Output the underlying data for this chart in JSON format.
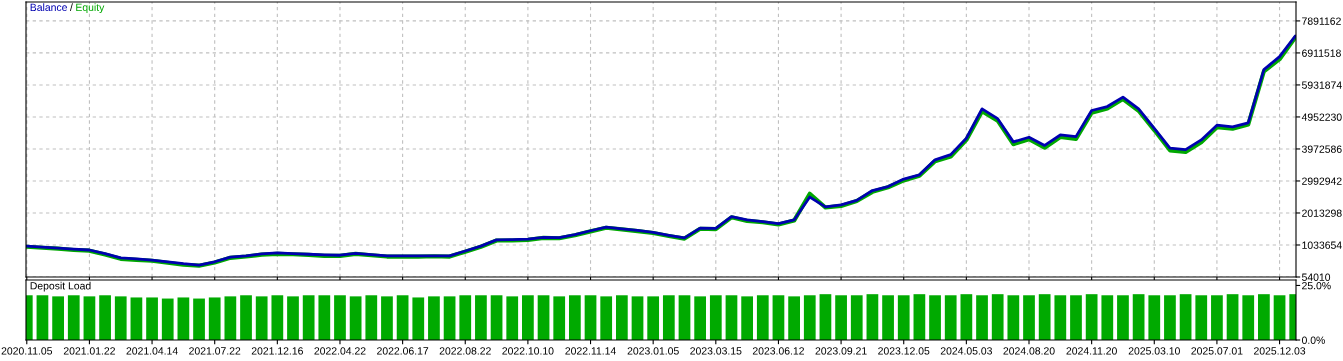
{
  "chart_data": [
    {
      "type": "line",
      "legend": "top left",
      "grid": true,
      "tick_labels": "y",
      "line_style": "solid",
      "marker": "none",
      "annotations": [
        "/"
      ],
      "ylim": [
        54010,
        8470000
      ],
      "yticks": [
        54010,
        1033654,
        2013298,
        2992942,
        3972586,
        4952230,
        5931874,
        6911518,
        7891162
      ],
      "categories": [
        "2020.11.05",
        null,
        null,
        null,
        "2021.01.22",
        null,
        null,
        null,
        "2021.04.14",
        null,
        null,
        null,
        "2021.07.22",
        null,
        null,
        null,
        "2021.12.16",
        null,
        null,
        null,
        "2022.04.22",
        null,
        null,
        null,
        "2022.06.17",
        null,
        null,
        null,
        "2022.08.22",
        null,
        null,
        null,
        "2022.10.10",
        null,
        null,
        null,
        "2022.11.14",
        null,
        null,
        null,
        "2023.01.05",
        null,
        null,
        null,
        "2023.03.15",
        null,
        null,
        null,
        "2023.06.12",
        null,
        null,
        null,
        "2023.09.21",
        null,
        null,
        null,
        "2023.12.05",
        null,
        null,
        null,
        "2024.05.03",
        null,
        null,
        null,
        "2024.08.20",
        null,
        null,
        null,
        "2024.11.20",
        null,
        null,
        null,
        "2025.03.10",
        null,
        null,
        null,
        "2025.07.01",
        null,
        null,
        null,
        "2025.12.03",
        null
      ],
      "series": [
        {
          "name": "Equity",
          "color": "#00a800",
          "values": [
            980000,
            950000,
            920000,
            880000,
            860000,
            740000,
            610000,
            580000,
            550000,
            490000,
            430000,
            400000,
            500000,
            640000,
            680000,
            740000,
            760000,
            750000,
            730000,
            700000,
            700000,
            760000,
            720000,
            680000,
            680000,
            680000,
            690000,
            680000,
            830000,
            980000,
            1170000,
            1170000,
            1190000,
            1250000,
            1240000,
            1330000,
            1450000,
            1560000,
            1510000,
            1460000,
            1400000,
            1310000,
            1230000,
            1530000,
            1520000,
            1880000,
            1770000,
            1730000,
            1660000,
            1780000,
            2600000,
            2180000,
            2230000,
            2380000,
            2660000,
            2800000,
            3010000,
            3150000,
            3600000,
            3740000,
            4250000,
            5130000,
            4840000,
            4120000,
            4270000,
            4010000,
            4340000,
            4280000,
            5080000,
            5210000,
            5500000,
            5140000,
            4550000,
            3930000,
            3880000,
            4180000,
            4640000,
            4590000,
            4720000,
            6350000,
            6720000,
            7380000
          ]
        },
        {
          "name": "Balance",
          "color": "#0000b0",
          "values": [
            1000000,
            970000,
            940000,
            910000,
            880000,
            770000,
            640000,
            610000,
            570000,
            520000,
            460000,
            420000,
            520000,
            660000,
            700000,
            760000,
            790000,
            770000,
            750000,
            730000,
            720000,
            780000,
            740000,
            700000,
            700000,
            700000,
            700000,
            700000,
            850000,
            1000000,
            1190000,
            1200000,
            1210000,
            1270000,
            1260000,
            1350000,
            1470000,
            1580000,
            1530000,
            1480000,
            1420000,
            1330000,
            1250000,
            1550000,
            1540000,
            1900000,
            1800000,
            1750000,
            1690000,
            1800000,
            2500000,
            2200000,
            2260000,
            2400000,
            2700000,
            2820000,
            3050000,
            3180000,
            3640000,
            3800000,
            4300000,
            5200000,
            4900000,
            4190000,
            4330000,
            4080000,
            4400000,
            4350000,
            5150000,
            5270000,
            5560000,
            5200000,
            4600000,
            4000000,
            3950000,
            4250000,
            4700000,
            4650000,
            4770000,
            6400000,
            6800000,
            7430000
          ]
        }
      ]
    },
    {
      "type": "bar",
      "title": "Deposit Load",
      "grid": false,
      "color": "#00aa00",
      "ylim": [
        0,
        27.5
      ],
      "yticks": [
        {
          "value": 0,
          "label": "0.0%"
        },
        {
          "value": 25,
          "label": "25.0%"
        }
      ],
      "categories": [
        "2020.11.05",
        null,
        null,
        null,
        "2021.01.22",
        null,
        null,
        null,
        "2021.04.14",
        null,
        null,
        null,
        "2021.07.22",
        null,
        null,
        null,
        "2021.12.16",
        null,
        null,
        null,
        "2022.04.22",
        null,
        null,
        null,
        "2022.06.17",
        null,
        null,
        null,
        "2022.08.22",
        null,
        null,
        null,
        "2022.10.10",
        null,
        null,
        null,
        "2022.11.14",
        null,
        null,
        null,
        "2023.01.05",
        null,
        null,
        null,
        "2023.03.15",
        null,
        null,
        null,
        "2023.06.12",
        null,
        null,
        null,
        "2023.09.21",
        null,
        null,
        null,
        "2023.12.05",
        null,
        null,
        null,
        "2024.05.03",
        null,
        null,
        null,
        "2024.08.20",
        null,
        null,
        null,
        "2024.11.20",
        null,
        null,
        null,
        "2025.03.10",
        null,
        null,
        null,
        "2025.07.01",
        null,
        null,
        null,
        "2025.12.03",
        null
      ],
      "values": [
        20.5,
        20.5,
        20.0,
        20.5,
        20.0,
        20.5,
        20.0,
        19.5,
        19.5,
        19.0,
        19.5,
        19.0,
        19.5,
        20.0,
        20.5,
        20.0,
        20.5,
        20.0,
        20.5,
        20.5,
        20.5,
        20.0,
        20.5,
        20.0,
        20.5,
        19.5,
        20.0,
        20.0,
        20.5,
        20.5,
        20.5,
        20.0,
        20.5,
        20.5,
        20.0,
        20.5,
        20.5,
        20.0,
        20.5,
        20.0,
        20.0,
        20.5,
        20.5,
        20.0,
        20.5,
        20.5,
        20.0,
        20.5,
        20.5,
        20.0,
        20.5,
        21.0,
        20.5,
        20.5,
        21.0,
        20.5,
        20.5,
        21.0,
        20.5,
        20.5,
        21.0,
        20.5,
        21.0,
        20.5,
        20.5,
        21.0,
        20.5,
        20.5,
        21.0,
        20.5,
        20.5,
        21.0,
        20.5,
        20.5,
        21.0,
        20.5,
        20.5,
        21.0,
        20.5,
        21.0,
        20.5,
        21.0
      ]
    }
  ]
}
